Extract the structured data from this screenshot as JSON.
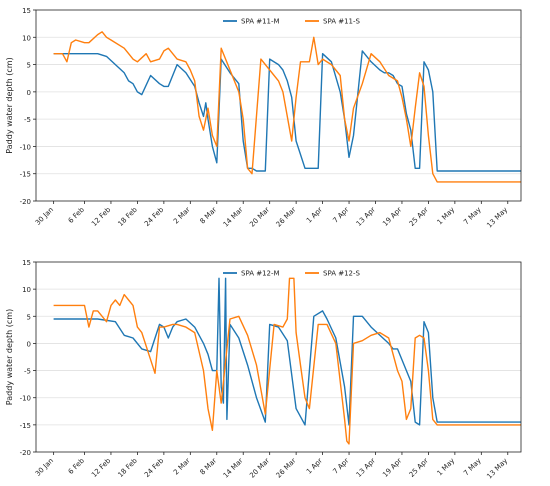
{
  "chart_data": [
    {
      "type": "line",
      "ylabel": "Paddy water depth (cm)",
      "xlabel": "",
      "ylim": [
        -20,
        15
      ],
      "y_ticks": [
        -20,
        -15,
        -10,
        -5,
        0,
        5,
        10,
        15
      ],
      "x_range_days": [
        -4,
        106
      ],
      "date_ticks": [
        "30 Jan",
        "6 Feb",
        "12 Feb",
        "18 Feb",
        "24 Feb",
        "2 Mar",
        "8 Mar",
        "14 Mar",
        "20 Mar",
        "26 Mar",
        "1 Apr",
        "7 Apr",
        "13 Apr",
        "19 Apr",
        "25 Apr",
        "1 May",
        "7 May",
        "13 May"
      ],
      "date_tick_days": [
        0,
        7,
        13,
        19,
        25,
        31,
        37,
        43,
        49,
        55,
        61,
        67,
        73,
        79,
        85,
        91,
        97,
        103
      ],
      "grid": "horizontal",
      "legend_position": "top-center",
      "series": [
        {
          "name": "SPA #11-M",
          "color": "#1f77b4",
          "x": [
            0,
            5,
            10,
            12,
            14,
            16,
            17,
            18,
            19,
            20,
            22,
            24,
            25,
            26,
            28,
            30,
            32,
            33,
            34,
            34.5,
            35,
            36,
            37,
            38,
            40,
            42,
            43,
            44,
            45,
            46,
            48,
            49,
            51,
            52,
            53,
            54,
            55,
            57,
            59,
            60,
            61,
            63,
            65,
            66,
            67,
            68,
            70,
            72,
            74,
            75,
            76,
            77,
            78,
            79,
            80,
            81,
            82,
            83,
            84,
            85,
            86,
            87,
            95,
            106
          ],
          "y": [
            7,
            7,
            7,
            6.5,
            5,
            3.5,
            2,
            1.5,
            0,
            -0.5,
            3,
            1.5,
            1,
            1,
            5,
            3.5,
            1,
            -2,
            -4.5,
            -2,
            -5,
            -10,
            -13,
            6,
            3.5,
            1.5,
            -9,
            -14,
            -14,
            -14.5,
            -14.5,
            6,
            5,
            4,
            2,
            -1,
            -9,
            -14,
            -14,
            -14,
            7,
            5.5,
            0,
            -5,
            -12,
            -8,
            7.5,
            5.5,
            4,
            3.5,
            3.5,
            3,
            1.5,
            1,
            -4,
            -7,
            -14,
            -14,
            5.5,
            4,
            0,
            -14.5,
            -14.5,
            -14.5
          ]
        },
        {
          "name": "SPA #11-S",
          "color": "#ff7f0e",
          "x": [
            0,
            2,
            3,
            4,
            5,
            7,
            8,
            10,
            11,
            12,
            13,
            16,
            18,
            19,
            21,
            22,
            24,
            25,
            26,
            28,
            30,
            31,
            32,
            33,
            34,
            35,
            36,
            37,
            38,
            40,
            42,
            43,
            44,
            45,
            47,
            49,
            51,
            52,
            54,
            55,
            56,
            58,
            59,
            60,
            61,
            63,
            65,
            66,
            67,
            68,
            70,
            72,
            74,
            76,
            78,
            79,
            80,
            81,
            82,
            83,
            84,
            85,
            86,
            87,
            95,
            106
          ],
          "y": [
            7,
            7,
            5.5,
            9,
            9.5,
            9,
            9,
            10.5,
            11,
            10,
            9.5,
            8,
            6,
            5.5,
            7,
            5.5,
            6,
            7.5,
            8,
            6,
            5.5,
            4,
            2,
            -4.5,
            -7,
            -3,
            -8,
            -10,
            8,
            4,
            0,
            -5,
            -14,
            -15,
            6,
            4,
            2,
            0,
            -9,
            -1,
            5.5,
            5.5,
            10,
            5,
            6,
            5,
            3,
            -5,
            -9,
            -3,
            1.5,
            7,
            5.5,
            3,
            2,
            -1,
            -5,
            -10,
            -3,
            3.5,
            1,
            -8,
            -15,
            -16.5,
            -16.5,
            -16.5
          ]
        }
      ]
    },
    {
      "type": "line",
      "ylabel": "Paddy water depth (cm)",
      "xlabel": "",
      "ylim": [
        -20,
        15
      ],
      "y_ticks": [
        -20,
        -15,
        -10,
        -5,
        0,
        5,
        10,
        15
      ],
      "x_range_days": [
        -4,
        106
      ],
      "date_ticks": [
        "30 Jan",
        "6 Feb",
        "12 Feb",
        "18 Feb",
        "24 Feb",
        "2 Mar",
        "8 Mar",
        "14 Mar",
        "20 Mar",
        "26 Mar",
        "1 Apr",
        "7 Apr",
        "13 Apr",
        "19 Apr",
        "25 Apr",
        "1 May",
        "7 May",
        "13 May"
      ],
      "date_tick_days": [
        0,
        7,
        13,
        19,
        25,
        31,
        37,
        43,
        49,
        55,
        61,
        67,
        73,
        79,
        85,
        91,
        97,
        103
      ],
      "grid": "horizontal",
      "legend_position": "top-center",
      "series": [
        {
          "name": "SPA #12-M",
          "color": "#1f77b4",
          "x": [
            0,
            10,
            14,
            16,
            18,
            20,
            22,
            24,
            25,
            26,
            27,
            28,
            30,
            32,
            34,
            35,
            36,
            37,
            37.5,
            38,
            38.5,
            39,
            39.3,
            40,
            42,
            44,
            46,
            48,
            49,
            51,
            53,
            55,
            57,
            59,
            61,
            62,
            64,
            66,
            67,
            68,
            70,
            72,
            74,
            76,
            77,
            78,
            80,
            81,
            82,
            83,
            84,
            85,
            86,
            87,
            95,
            106
          ],
          "y": [
            4.5,
            4.5,
            4,
            1.5,
            1,
            -1,
            -1.5,
            3.5,
            3,
            1,
            3,
            4,
            4.5,
            3,
            0,
            -2,
            -5,
            -5,
            12,
            -8,
            -11,
            12,
            -14,
            3.5,
            1,
            -4,
            -10,
            -14.5,
            3.5,
            3,
            0.5,
            -12,
            -15,
            5,
            6,
            4.5,
            1,
            -8,
            -15,
            5,
            5,
            3,
            1.5,
            0,
            -1,
            -1,
            -5,
            -7,
            -14.5,
            -15,
            4,
            2,
            -10,
            -14.5,
            -14.5,
            -14.5
          ]
        },
        {
          "name": "SPA #12-S",
          "color": "#ff7f0e",
          "x": [
            0,
            7,
            8,
            9,
            10,
            12,
            13,
            14,
            15,
            16,
            17,
            18,
            19,
            20,
            22,
            23,
            24,
            25,
            27,
            28,
            30,
            32,
            34,
            35,
            36,
            37,
            38,
            40,
            42,
            44,
            46,
            48,
            50,
            52,
            53,
            53.5,
            54,
            54.5,
            55,
            56,
            57,
            58,
            60,
            62,
            64,
            66,
            66.5,
            67,
            68,
            70,
            72,
            74,
            76,
            77,
            78,
            79,
            80,
            81,
            82,
            83,
            84,
            85,
            86,
            87,
            95,
            106
          ],
          "y": [
            7,
            7,
            3,
            6,
            6,
            4,
            7,
            8,
            7,
            9,
            8,
            7,
            3,
            2,
            -3,
            -5.5,
            3,
            3,
            3.5,
            3.5,
            3,
            2,
            -5,
            -12,
            -16,
            -5,
            -11,
            4.5,
            5,
            1.5,
            -4,
            -13,
            3.5,
            3,
            4.5,
            12,
            12,
            12,
            2,
            -4,
            -10,
            -12,
            3.5,
            3.5,
            0,
            -14,
            -18,
            -18.5,
            0,
            0.5,
            1.5,
            2,
            1,
            -2,
            -5,
            -7,
            -14,
            -12,
            1,
            1.5,
            1,
            -5,
            -14,
            -15,
            -15,
            -15
          ]
        }
      ]
    }
  ]
}
